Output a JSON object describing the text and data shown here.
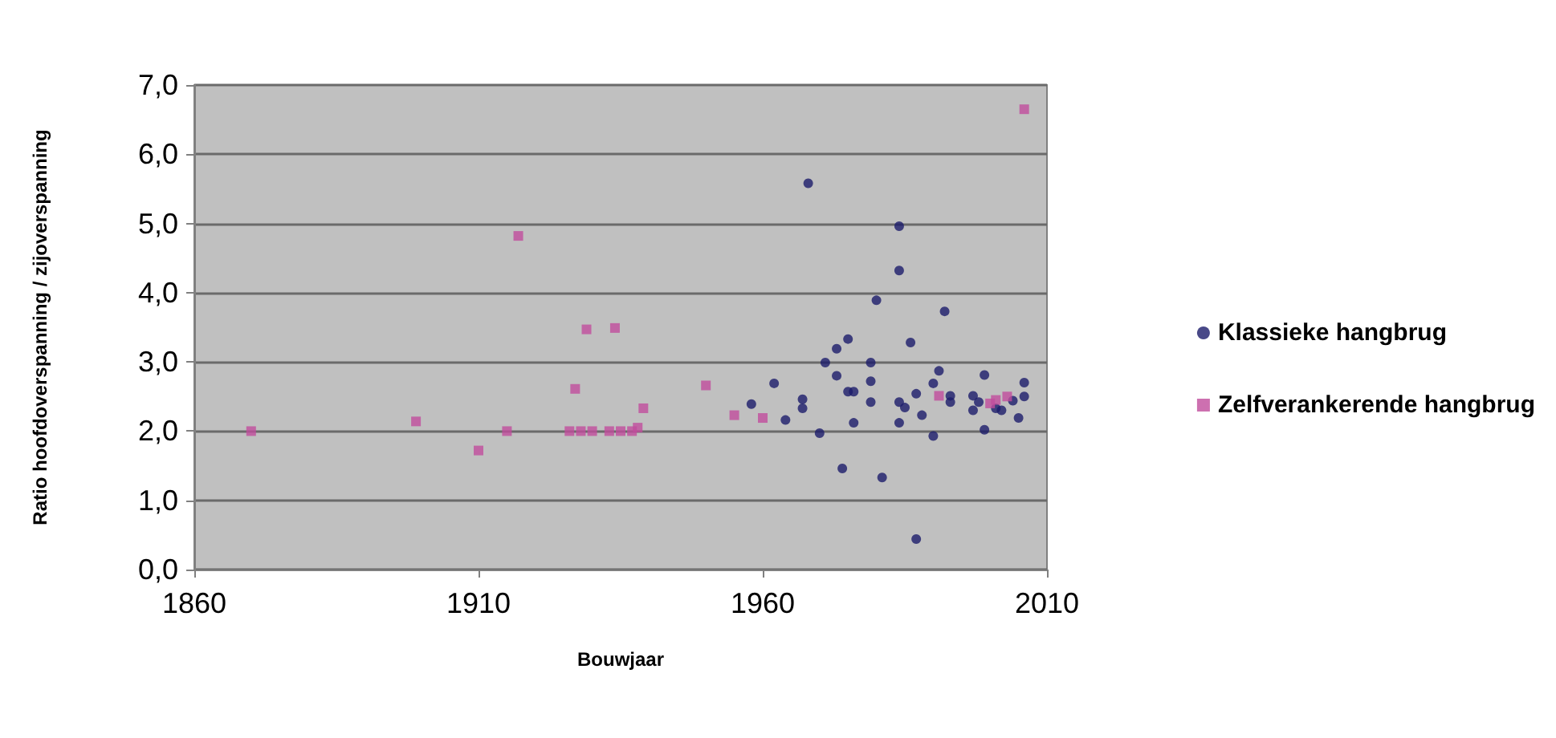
{
  "chart_data": {
    "type": "scatter",
    "xlabel": "Bouwjaar",
    "ylabel": "Ratio hoofdoverspanning / zijoverspanning",
    "xlim": [
      1860,
      2010
    ],
    "xticks": [
      1860,
      1910,
      1960,
      2010
    ],
    "ylim": [
      0,
      7
    ],
    "yticks": [
      {
        "value": 0,
        "label": "0,0"
      },
      {
        "value": 1,
        "label": "1,0"
      },
      {
        "value": 2,
        "label": "2,0"
      },
      {
        "value": 3,
        "label": "3,0"
      },
      {
        "value": 4,
        "label": "4,0"
      },
      {
        "value": 5,
        "label": "5,0"
      },
      {
        "value": 6,
        "label": "6,0"
      },
      {
        "value": 7,
        "label": "7,0"
      }
    ],
    "grid": "y",
    "legend": "right",
    "series": [
      {
        "name": "Klassieke hangbrug",
        "color": "#1c1c6a",
        "marker": "circle",
        "x": [
          1968,
          1984,
          1984,
          1980,
          1992,
          1986,
          1975,
          1973,
          1971,
          1979,
          1973,
          1979,
          1962,
          1975,
          1976,
          1967,
          1967,
          1958,
          1964,
          1976,
          1970,
          1979,
          1984,
          1984,
          1985,
          1988,
          1987,
          1990,
          1991,
          1990,
          1993,
          1993,
          1999,
          1997,
          1997,
          1998,
          1999,
          2001,
          2002,
          2004,
          2005,
          2006,
          2006,
          1974,
          1981,
          1987
        ],
        "values": [
          5.58,
          4.96,
          4.32,
          3.89,
          3.73,
          3.28,
          3.33,
          3.19,
          2.99,
          2.99,
          2.8,
          2.72,
          2.69,
          2.57,
          2.57,
          2.46,
          2.33,
          2.39,
          2.16,
          2.12,
          1.97,
          2.42,
          2.12,
          2.42,
          2.34,
          2.23,
          2.54,
          2.69,
          2.87,
          1.93,
          2.51,
          2.42,
          2.81,
          2.51,
          2.3,
          2.42,
          2.02,
          2.33,
          2.3,
          2.44,
          2.19,
          2.7,
          2.5,
          1.46,
          1.33,
          0.44
        ]
      },
      {
        "name": "Zelfverankerende hangbrug",
        "color": "#c04c9c",
        "marker": "square",
        "x": [
          1870,
          1899,
          1910,
          1915,
          1917,
          1927,
          1926,
          1928,
          1930,
          1929,
          1934,
          1933,
          1935,
          1937,
          1938,
          1939,
          1950,
          1955,
          1960,
          1991,
          2000,
          2001,
          2003,
          2006
        ],
        "values": [
          2.0,
          2.14,
          1.72,
          2.0,
          4.82,
          2.61,
          2.0,
          2.0,
          2.0,
          3.47,
          3.49,
          2.0,
          2.0,
          2.0,
          2.05,
          2.33,
          2.66,
          2.23,
          2.19,
          2.51,
          2.4,
          2.45,
          2.5,
          6.65
        ]
      }
    ]
  }
}
